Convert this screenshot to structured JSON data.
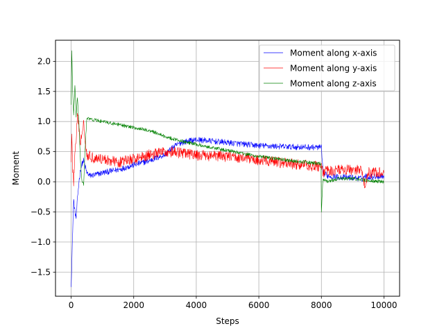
{
  "chart_data": {
    "type": "line",
    "title": "",
    "xlabel": "Steps",
    "ylabel": "Moment",
    "xlim": [
      -500,
      10500
    ],
    "ylim": [
      -1.9,
      2.35
    ],
    "xticks": [
      0,
      2000,
      4000,
      6000,
      8000,
      10000
    ],
    "xtick_labels": [
      "0",
      "2000",
      "4000",
      "6000",
      "8000",
      "10000"
    ],
    "yticks": [
      -1.5,
      -1.0,
      -0.5,
      0.0,
      0.5,
      1.0,
      1.5,
      2.0
    ],
    "ytick_labels": [
      "−1.5",
      "−1.0",
      "−0.5",
      "0.0",
      "0.5",
      "1.0",
      "1.5",
      "2.0"
    ],
    "grid": true,
    "legend_position": "top-right",
    "series": [
      {
        "name": "Moment along x-axis",
        "color": "#0000ff",
        "noise": 0.05,
        "x": [
          0,
          20,
          50,
          80,
          120,
          160,
          200,
          250,
          300,
          350,
          400,
          450,
          500,
          600,
          800,
          1000,
          1500,
          2000,
          2500,
          3000,
          3200,
          3500,
          4000,
          5000,
          6000,
          7000,
          8000,
          8050,
          8200,
          8500,
          9000,
          9300,
          9400,
          9500,
          10000
        ],
        "y": [
          -1.7,
          -1.4,
          -0.8,
          -0.3,
          -0.5,
          -0.6,
          -0.3,
          0.0,
          0.2,
          0.3,
          0.35,
          0.25,
          0.15,
          0.1,
          0.12,
          0.15,
          0.2,
          0.28,
          0.35,
          0.45,
          0.55,
          0.65,
          0.7,
          0.65,
          0.6,
          0.58,
          0.57,
          0.15,
          0.1,
          0.08,
          0.07,
          0.05,
          0.1,
          0.08,
          0.1
        ]
      },
      {
        "name": "Moment along y-axis",
        "color": "#ff0000",
        "noise": 0.09,
        "x": [
          0,
          20,
          50,
          80,
          120,
          160,
          200,
          250,
          300,
          350,
          400,
          450,
          500,
          700,
          1000,
          1500,
          2000,
          2500,
          3000,
          3500,
          4000,
          4500,
          5000,
          5500,
          6000,
          7000,
          8000,
          8050,
          8200,
          8500,
          9000,
          9300,
          9400,
          9500,
          10000
        ],
        "y": [
          0.4,
          0.75,
          0.2,
          0.0,
          0.45,
          0.7,
          1.1,
          0.9,
          0.6,
          0.85,
          1.0,
          0.7,
          0.45,
          0.4,
          0.38,
          0.32,
          0.38,
          0.45,
          0.5,
          0.48,
          0.44,
          0.43,
          0.42,
          0.4,
          0.36,
          0.3,
          0.25,
          0.15,
          0.18,
          0.2,
          0.2,
          0.2,
          -0.1,
          0.15,
          0.15
        ]
      },
      {
        "name": "Moment along z-axis",
        "color": "#008000",
        "noise": 0.03,
        "x": [
          0,
          20,
          50,
          80,
          120,
          160,
          200,
          250,
          300,
          350,
          400,
          450,
          500,
          1000,
          1500,
          2000,
          2500,
          2800,
          3000,
          3500,
          4000,
          5000,
          6000,
          7000,
          7990,
          8000,
          8050,
          8200,
          8500,
          9000,
          9500,
          10000
        ],
        "y": [
          1.3,
          2.15,
          1.5,
          1.1,
          1.6,
          1.1,
          1.4,
          0.95,
          0.3,
          0.0,
          -0.05,
          0.6,
          1.05,
          1.0,
          0.95,
          0.9,
          0.85,
          0.8,
          0.75,
          0.68,
          0.62,
          0.52,
          0.42,
          0.35,
          0.3,
          -0.5,
          0.05,
          0.0,
          0.05,
          0.05,
          0.02,
          0.0
        ]
      }
    ]
  }
}
